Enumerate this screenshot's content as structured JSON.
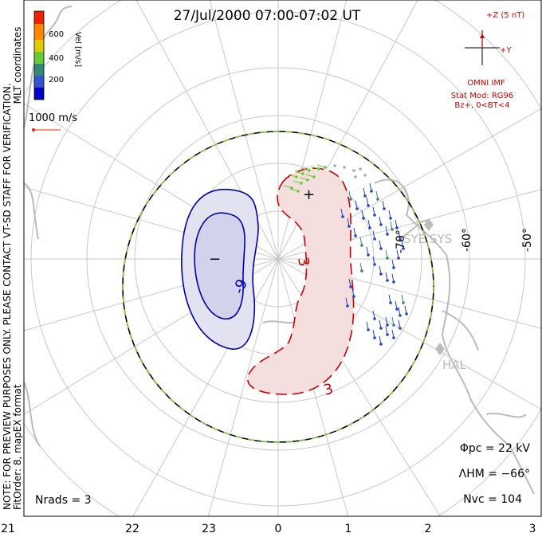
{
  "title": "27/Jul/2000 07:00-07:02 UT",
  "coord_label": "MLT coordinates",
  "colorbar": {
    "label": "Vel [m/s]",
    "ticks": [
      "600",
      "400",
      "200"
    ],
    "colors": [
      "#0000cc",
      "#3355cc",
      "#338877",
      "#66cc33",
      "#ddcc00",
      "#ff8800",
      "#ee2200"
    ]
  },
  "scale_vector": "1000 m/s",
  "side_note": "NOTE: FOR PREVIEW PURPOSES ONLY. PLEASE CONTACT VT-SD STAFF FOR VERIFICATION.",
  "fit_info": "FitOrder: 8, mapEX format",
  "imf": {
    "z_label": "+Z (5 nT)",
    "y_label": "+Y",
    "source": "OMNI IMF",
    "model": "Stat Mod: RG96",
    "condition": "Bz+, 0<BT<4"
  },
  "lat_labels": [
    "-70°",
    "-60°",
    "-50°"
  ],
  "stations": [
    "SYE SYS",
    "HAL"
  ],
  "contours": {
    "negative_label": "-9",
    "positive_labels": [
      "3",
      "3"
    ],
    "min_mark": "−",
    "max_mark": "+"
  },
  "stats": {
    "phi_pc": "Φpc = 22 kV",
    "lambda_hm": "ΛHM = −66°",
    "n_vc": "Nvc = 104",
    "n_rads": "Nrads = 3"
  },
  "mlt_ticks": [
    "21",
    "22",
    "23",
    "0",
    "1",
    "2",
    "3"
  ],
  "colors": {
    "negative": "#0000aa",
    "positive": "#cc0000",
    "boundary": "#88cc44",
    "coast": "#bbbbbb",
    "grid": "#c8c8c8"
  }
}
